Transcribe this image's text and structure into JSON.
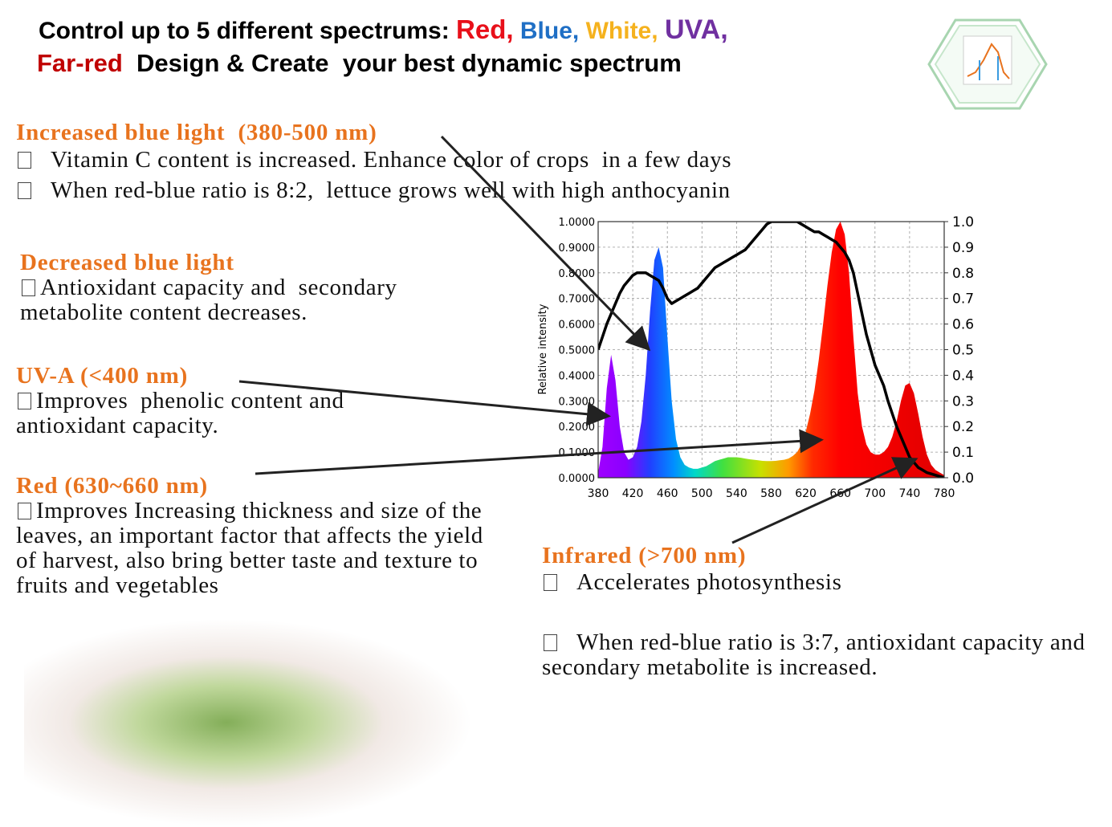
{
  "header": {
    "line1": "Control up to 5 different spectrums: ",
    "red": "Red,",
    "blue": "Blue,",
    "white": "White,",
    "uva": "UVA,",
    "far_red": "Far-red",
    "line2": "Design & Create  your best dynamic spectrum"
  },
  "sections": [
    {
      "heading": "Increased blue light  (380-500 nm)",
      "items": [
        "Vitamin C content is increased. Enhance color of crops  in a few days",
        "When red-blue ratio is 8:2,  lettuce grows well with high anthocyanin"
      ]
    },
    {
      "heading": "Decreased blue light",
      "items": [
        "Antioxidant capacity and  secondary metabolite content decreases."
      ]
    },
    {
      "heading": "UV-A (<400 nm)",
      "items": [
        "Improves  phenolic content and antioxidant capacity."
      ]
    },
    {
      "heading": "Red (630~660 nm)",
      "items": [
        "Improves Increasing thickness and size of the leaves, an important factor that affects the yield of harvest, also bring better taste and texture to fruits and vegetables"
      ]
    },
    {
      "heading": "Infrared (>700 nm)",
      "items": [
        "Accelerates photosynthesis",
        "When red-blue ratio is 3:7, antioxidant capacity and secondary metabolite is increased."
      ]
    }
  ],
  "chart_data": {
    "type": "area",
    "y_label": "Relative intensity",
    "grid": true,
    "xlim": [
      380,
      780
    ],
    "xticks": [
      380,
      420,
      460,
      500,
      540,
      580,
      620,
      660,
      700,
      740,
      780
    ],
    "ylim": [
      0,
      1
    ],
    "yticks": [
      {
        "value": 0,
        "label": "0.0000"
      },
      {
        "value": 0.1,
        "label": "0.1000"
      },
      {
        "value": 0.2,
        "label": "0.2000"
      },
      {
        "value": 0.3,
        "label": "0.3000"
      },
      {
        "value": 0.4,
        "label": "0.4000"
      },
      {
        "value": 0.5,
        "label": "0.5000"
      },
      {
        "value": 0.6,
        "label": "0.6000"
      },
      {
        "value": 0.7,
        "label": "0.7000"
      },
      {
        "value": 0.8,
        "label": "0.8000"
      },
      {
        "value": 0.9,
        "label": "0.9000"
      },
      {
        "value": 1,
        "label": "1.0000"
      }
    ],
    "y2lim": [
      0,
      1
    ],
    "y2ticks": [
      {
        "value": 0,
        "label": "0.0"
      },
      0.1,
      0.2,
      0.3,
      0.4,
      0.5,
      0.6,
      0.7,
      0.8,
      0.9,
      {
        "value": 1,
        "label": "1.0"
      }
    ],
    "x": [
      380,
      385,
      390,
      395,
      400,
      405,
      410,
      415,
      420,
      425,
      430,
      435,
      440,
      445,
      450,
      455,
      460,
      465,
      470,
      475,
      480,
      485,
      490,
      495,
      500,
      505,
      510,
      515,
      520,
      525,
      530,
      535,
      540,
      545,
      550,
      555,
      560,
      565,
      570,
      575,
      580,
      585,
      590,
      595,
      600,
      605,
      610,
      615,
      620,
      625,
      630,
      635,
      640,
      645,
      650,
      655,
      660,
      665,
      670,
      675,
      680,
      685,
      690,
      695,
      700,
      705,
      710,
      715,
      720,
      725,
      730,
      735,
      740,
      745,
      750,
      755,
      760,
      765,
      770,
      775,
      780
    ],
    "series": [
      {
        "color": "spectrum",
        "values": [
          0.02,
          0.12,
          0.35,
          0.48,
          0.38,
          0.2,
          0.1,
          0.07,
          0.08,
          0.12,
          0.22,
          0.4,
          0.65,
          0.85,
          0.9,
          0.82,
          0.55,
          0.3,
          0.15,
          0.08,
          0.05,
          0.04,
          0.035,
          0.035,
          0.04,
          0.045,
          0.055,
          0.065,
          0.07,
          0.075,
          0.08,
          0.08,
          0.08,
          0.078,
          0.075,
          0.072,
          0.07,
          0.068,
          0.066,
          0.065,
          0.065,
          0.066,
          0.068,
          0.07,
          0.075,
          0.085,
          0.1,
          0.13,
          0.18,
          0.25,
          0.34,
          0.46,
          0.6,
          0.75,
          0.88,
          0.97,
          1.0,
          0.95,
          0.8,
          0.55,
          0.33,
          0.2,
          0.13,
          0.1,
          0.09,
          0.09,
          0.1,
          0.12,
          0.16,
          0.22,
          0.3,
          0.36,
          0.37,
          0.33,
          0.25,
          0.16,
          0.09,
          0.05,
          0.03,
          0.02,
          0.01
        ]
      },
      {
        "color": "#000000",
        "axis": "y2",
        "values": [
          0.5,
          0.55,
          0.6,
          0.64,
          0.68,
          0.72,
          0.75,
          0.77,
          0.79,
          0.8,
          0.8,
          0.8,
          0.79,
          0.78,
          0.77,
          0.74,
          0.7,
          0.68,
          0.69,
          0.7,
          0.71,
          0.72,
          0.73,
          0.74,
          0.76,
          0.78,
          0.8,
          0.82,
          0.83,
          0.84,
          0.85,
          0.86,
          0.87,
          0.88,
          0.89,
          0.91,
          0.93,
          0.95,
          0.97,
          0.99,
          1.0,
          1.0,
          1.0,
          1.0,
          1.0,
          1.0,
          1.0,
          0.99,
          0.98,
          0.97,
          0.96,
          0.96,
          0.95,
          0.94,
          0.93,
          0.92,
          0.9,
          0.88,
          0.85,
          0.8,
          0.72,
          0.64,
          0.56,
          0.5,
          0.44,
          0.4,
          0.36,
          0.3,
          0.25,
          0.2,
          0.16,
          0.12,
          0.08,
          0.06,
          0.04,
          0.03,
          0.02,
          0.015,
          0.01,
          0.005,
          0
        ]
      }
    ]
  }
}
